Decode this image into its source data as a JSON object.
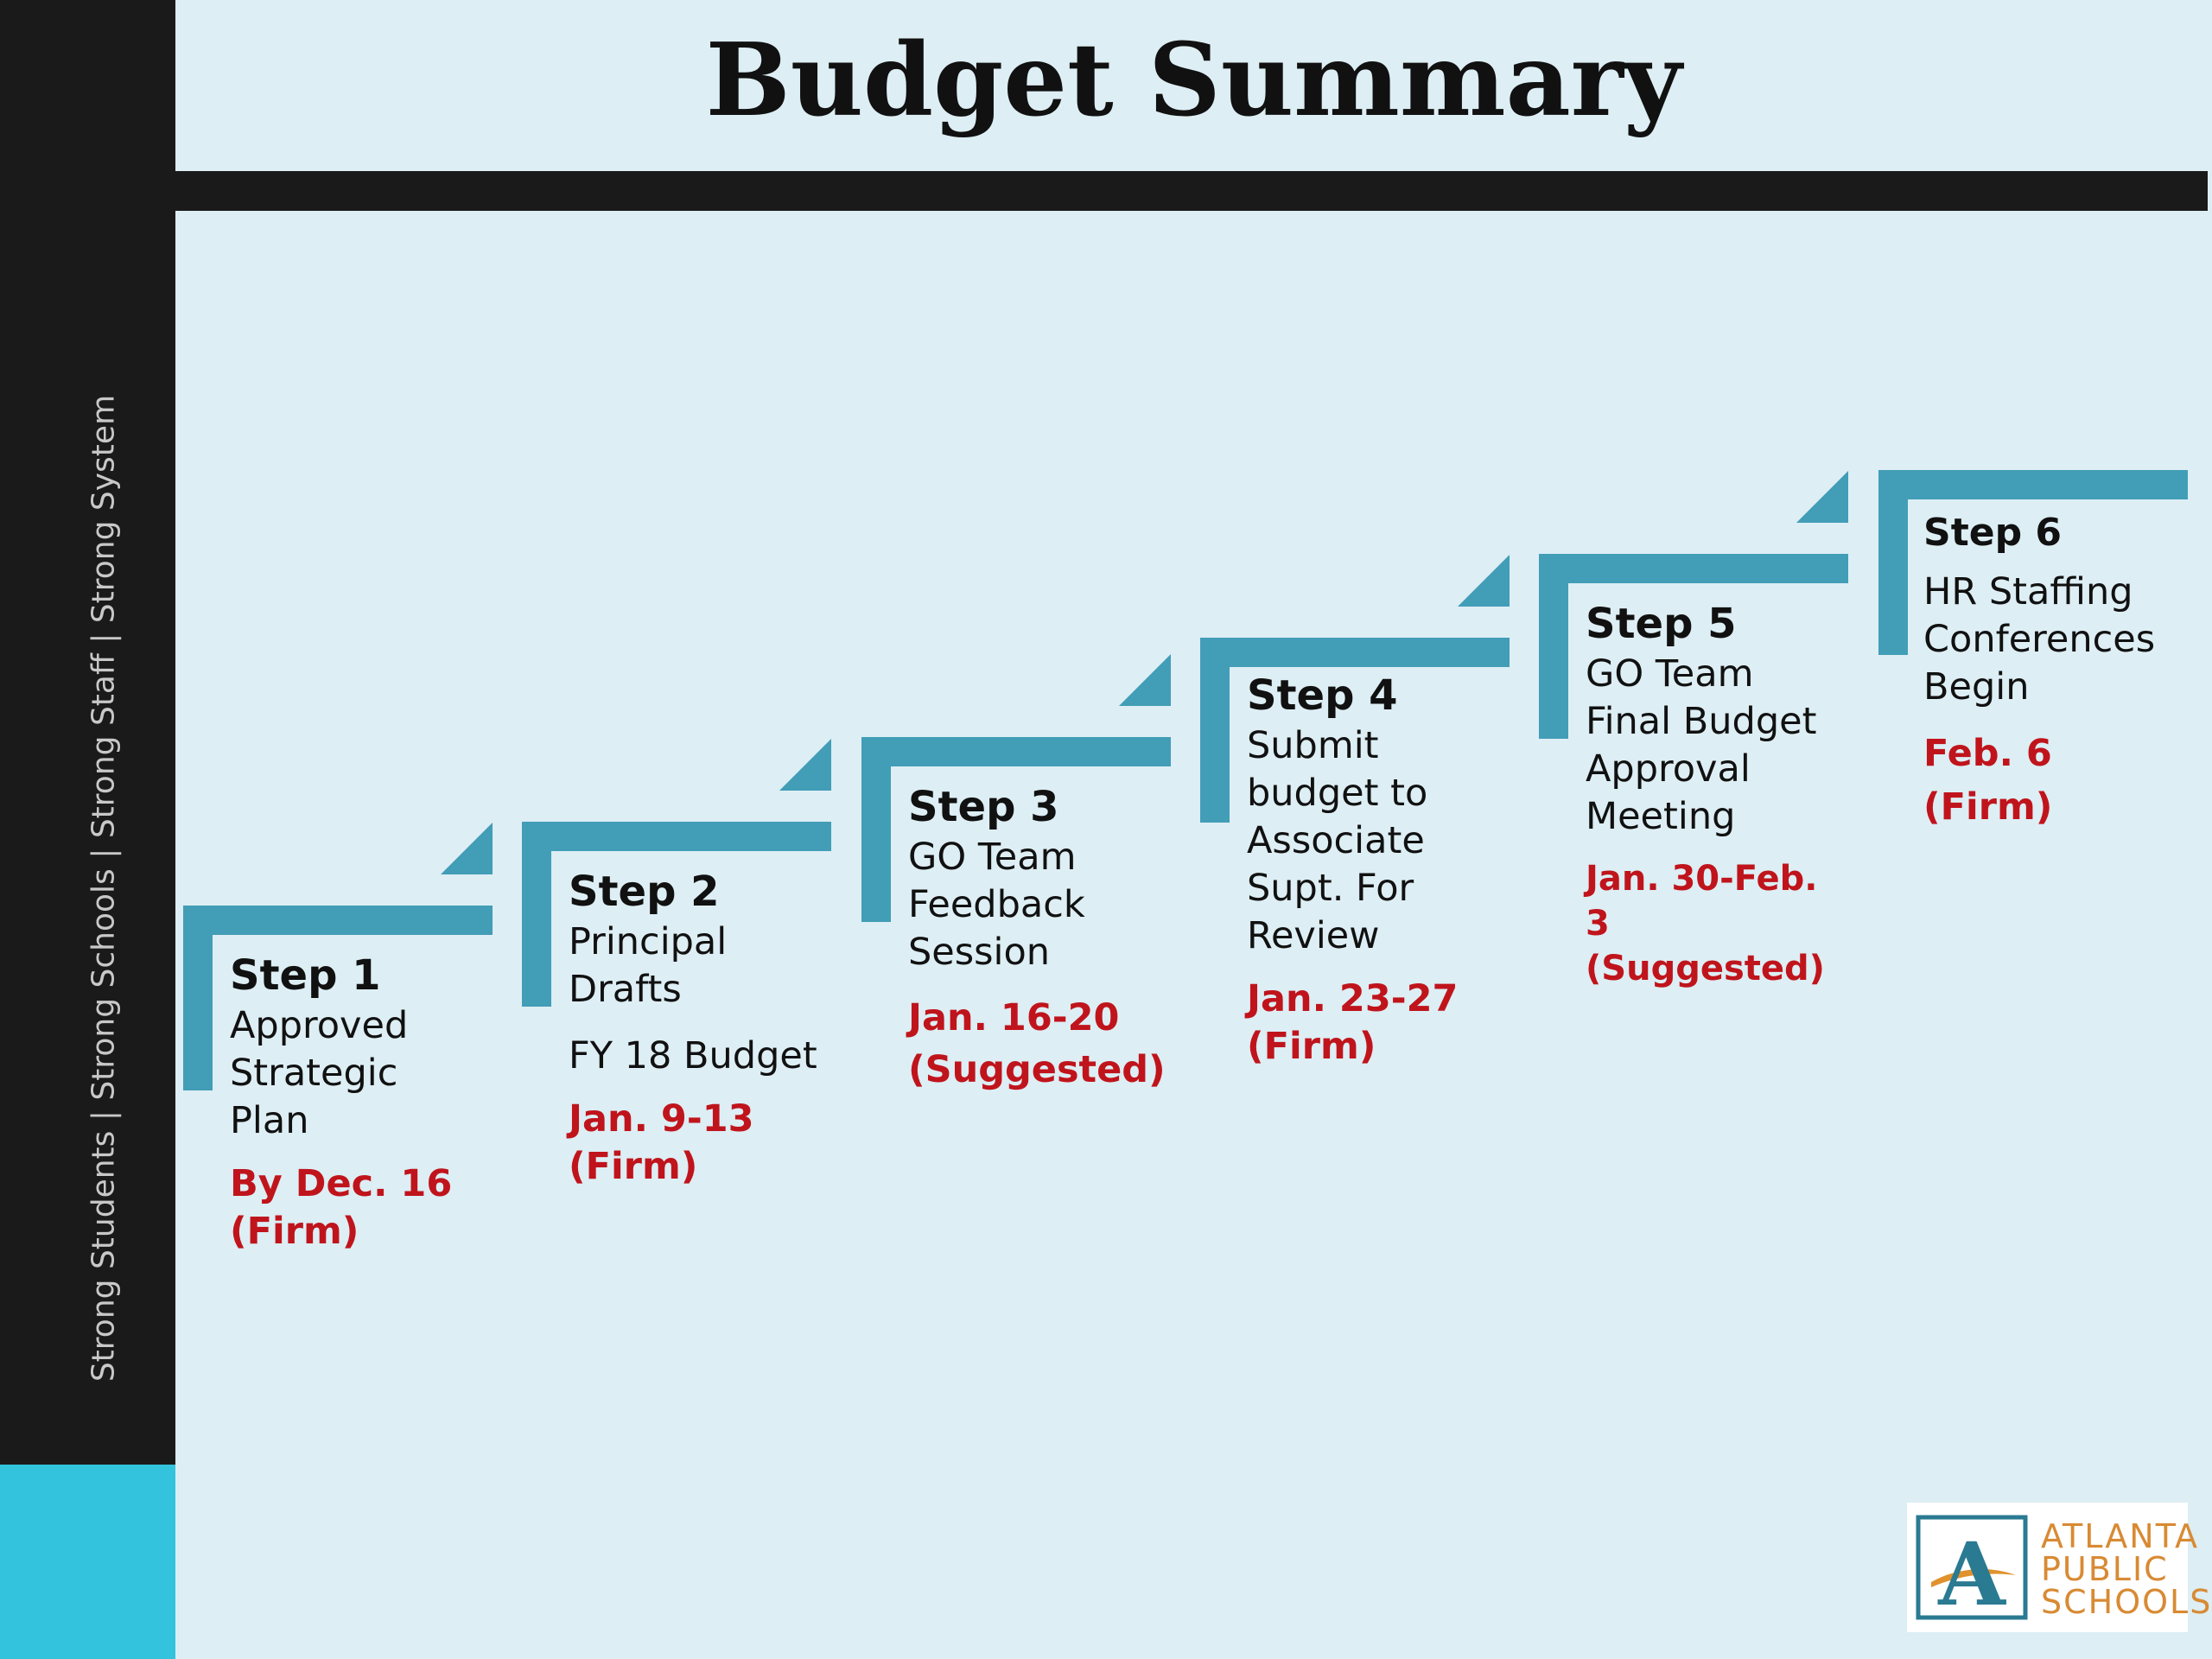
{
  "slide": {
    "title": "Budget Summary",
    "tagline": "Strong Students  |  Strong Schools  |  Strong Staff  |  Strong System"
  },
  "colors": {
    "step_bracket": "#429db7",
    "date_red": "#c0141c",
    "accent_cyan": "#33c3dd",
    "sidebar_black": "#1a1a1a",
    "background": "#ddeef4"
  },
  "steps": [
    {
      "title": "Step 1",
      "lines": [
        "Approved",
        "Strategic",
        "Plan"
      ],
      "extra": "",
      "date": [
        "By Dec. 16",
        "(Firm)"
      ]
    },
    {
      "title": "Step 2",
      "lines": [
        "Principal",
        "Drafts"
      ],
      "extra": "FY 18 Budget",
      "date": [
        "Jan. 9-13",
        "(Firm)"
      ]
    },
    {
      "title": "Step 3",
      "lines": [
        "GO Team",
        "Feedback",
        "Session"
      ],
      "extra": "",
      "date": [
        "Jan. 16-20",
        "(Suggested)"
      ]
    },
    {
      "title": "Step 4",
      "lines": [
        "Submit",
        "budget to",
        "Associate",
        "Supt. For",
        "Review"
      ],
      "extra": "",
      "date": [
        "Jan. 23-27",
        "(Firm)"
      ]
    },
    {
      "title": "Step 5",
      "lines": [
        "GO Team",
        "Final Budget",
        "Approval",
        "Meeting"
      ],
      "extra": "",
      "date": [
        "Jan. 30-Feb. 3",
        "(Suggested)"
      ]
    },
    {
      "title": "Step 6",
      "lines": [
        "HR Staffing",
        "Conferences",
        "Begin"
      ],
      "extra": "",
      "date": [
        "Feb. 6",
        "(Firm)"
      ]
    }
  ],
  "logo": {
    "letter": "A",
    "words": [
      "ATLANTA",
      "PUBLIC",
      "SCHOOLS"
    ]
  }
}
